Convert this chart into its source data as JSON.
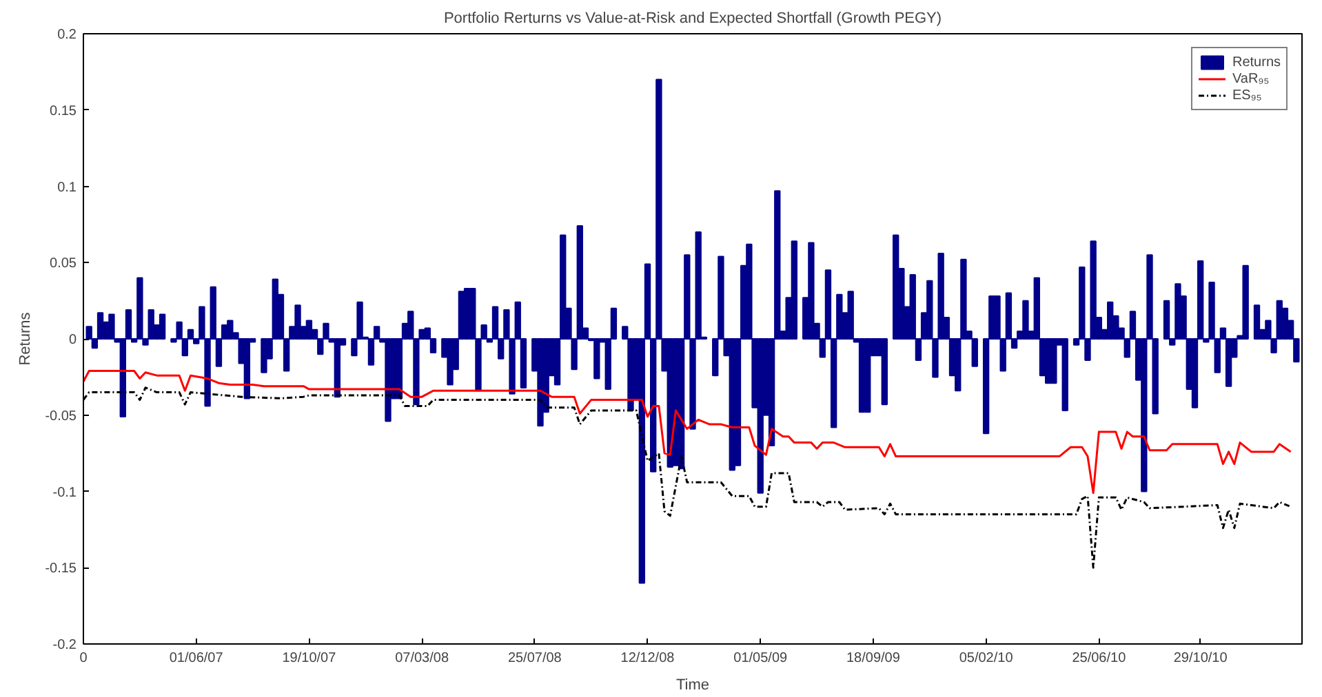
{
  "chart_data": {
    "type": "bar",
    "title": "Portfolio Rerturns vs Value-at-Risk and Expected Shortfall (Growth PEGY)",
    "xlabel": "Time",
    "ylabel": "Returns",
    "xlim": [
      "2007-01-12",
      "2011-03-04"
    ],
    "ylim": [
      -0.2,
      0.2
    ],
    "xticks": [
      {
        "value": "2007-01-12",
        "label": "0"
      },
      {
        "value": "2007-06-01",
        "label": "01/06/07"
      },
      {
        "value": "2007-10-19",
        "label": "19/10/07"
      },
      {
        "value": "2008-03-07",
        "label": "07/03/08"
      },
      {
        "value": "2008-07-25",
        "label": "25/07/08"
      },
      {
        "value": "2008-12-12",
        "label": "12/12/08"
      },
      {
        "value": "2009-05-01",
        "label": "01/05/09"
      },
      {
        "value": "2009-09-18",
        "label": "18/09/09"
      },
      {
        "value": "2010-02-05",
        "label": "05/02/10"
      },
      {
        "value": "2010-06-25",
        "label": "25/06/10"
      },
      {
        "value": "2010-10-29",
        "label": "29/10/10"
      }
    ],
    "yticks": [
      -0.2,
      -0.15,
      -0.1,
      -0.05,
      0,
      0.05,
      0.1,
      0.15,
      0.2
    ],
    "grid": false,
    "legend": "top right",
    "series": [
      {
        "name": "Returns",
        "color": "#00008b",
        "x": [
          "2007-01-19",
          "2007-01-26",
          "2007-02-02",
          "2007-02-09",
          "2007-02-16",
          "2007-02-23",
          "2007-03-02",
          "2007-03-09",
          "2007-03-16",
          "2007-03-23",
          "2007-03-30",
          "2007-04-06",
          "2007-04-13",
          "2007-04-20",
          "2007-05-04",
          "2007-05-11",
          "2007-05-18",
          "2007-05-25",
          "2007-06-01",
          "2007-06-08",
          "2007-06-15",
          "2007-06-22",
          "2007-06-29",
          "2007-07-06",
          "2007-07-13",
          "2007-07-20",
          "2007-07-27",
          "2007-08-03",
          "2007-08-10",
          "2007-08-24",
          "2007-08-31",
          "2007-09-07",
          "2007-09-14",
          "2007-09-21",
          "2007-09-28",
          "2007-10-05",
          "2007-10-12",
          "2007-10-19",
          "2007-10-26",
          "2007-11-02",
          "2007-11-09",
          "2007-11-16",
          "2007-11-23",
          "2007-11-30",
          "2007-12-14",
          "2007-12-21",
          "2007-12-28",
          "2008-01-04",
          "2008-01-11",
          "2008-01-18",
          "2008-01-25",
          "2008-02-01",
          "2008-02-08",
          "2008-02-15",
          "2008-02-22",
          "2008-02-29",
          "2008-03-07",
          "2008-03-14",
          "2008-03-21",
          "2008-04-04",
          "2008-04-11",
          "2008-04-18",
          "2008-04-25",
          "2008-05-02",
          "2008-05-09",
          "2008-05-16",
          "2008-05-23",
          "2008-05-30",
          "2008-06-06",
          "2008-06-13",
          "2008-06-20",
          "2008-06-27",
          "2008-07-04",
          "2008-07-11",
          "2008-07-25",
          "2008-08-01",
          "2008-08-08",
          "2008-08-15",
          "2008-08-22",
          "2008-08-29",
          "2008-09-05",
          "2008-09-12",
          "2008-09-19",
          "2008-09-26",
          "2008-10-03",
          "2008-10-10",
          "2008-10-17",
          "2008-10-24",
          "2008-10-31",
          "2008-11-14",
          "2008-11-21",
          "2008-11-28",
          "2008-12-05",
          "2008-12-12",
          "2008-12-19",
          "2008-12-26",
          "2009-01-02",
          "2009-01-09",
          "2009-01-16",
          "2009-01-23",
          "2009-01-30",
          "2009-02-06",
          "2009-02-13",
          "2009-02-20",
          "2009-03-06",
          "2009-03-13",
          "2009-03-20",
          "2009-03-27",
          "2009-04-03",
          "2009-04-10",
          "2009-04-17",
          "2009-04-24",
          "2009-05-01",
          "2009-05-08",
          "2009-05-15",
          "2009-05-22",
          "2009-05-29",
          "2009-06-05",
          "2009-06-12",
          "2009-06-26",
          "2009-07-03",
          "2009-07-10",
          "2009-07-17",
          "2009-07-24",
          "2009-07-31",
          "2009-08-07",
          "2009-08-14",
          "2009-08-21",
          "2009-08-28",
          "2009-09-04",
          "2009-09-11",
          "2009-09-18",
          "2009-09-25",
          "2009-10-02",
          "2009-10-16",
          "2009-10-23",
          "2009-10-30",
          "2009-11-06",
          "2009-11-13",
          "2009-11-20",
          "2009-11-27",
          "2009-12-04",
          "2009-12-11",
          "2009-12-18",
          "2009-12-25",
          "2010-01-01",
          "2010-01-08",
          "2010-01-15",
          "2010-01-22",
          "2010-02-05",
          "2010-02-12",
          "2010-02-19",
          "2010-02-26",
          "2010-03-05",
          "2010-03-12",
          "2010-03-19",
          "2010-03-26",
          "2010-04-02",
          "2010-04-09",
          "2010-04-16",
          "2010-04-23",
          "2010-04-30",
          "2010-05-07",
          "2010-05-14",
          "2010-05-28",
          "2010-06-04",
          "2010-06-11",
          "2010-06-18",
          "2010-06-25",
          "2010-07-02",
          "2010-07-09",
          "2010-07-16",
          "2010-07-23",
          "2010-07-30",
          "2010-08-06",
          "2010-08-13",
          "2010-08-20",
          "2010-08-27",
          "2010-09-03",
          "2010-09-17",
          "2010-09-24",
          "2010-10-01",
          "2010-10-08",
          "2010-10-15",
          "2010-10-22",
          "2010-10-29",
          "2010-11-05",
          "2010-11-12",
          "2010-11-19",
          "2010-11-26",
          "2010-12-03",
          "2010-12-10",
          "2010-12-17",
          "2010-12-24",
          "2011-01-07",
          "2011-01-14",
          "2011-01-21",
          "2011-01-28",
          "2011-02-04",
          "2011-02-11",
          "2011-02-18",
          "2011-02-25"
        ],
        "values": [
          0.008,
          -0.006,
          0.017,
          0.011,
          0.016,
          -0.002,
          -0.051,
          0.019,
          -0.002,
          0.04,
          -0.004,
          0.019,
          0.009,
          0.016,
          -0.002,
          0.011,
          -0.011,
          0.006,
          -0.003,
          0.021,
          -0.044,
          0.034,
          -0.018,
          0.009,
          0.012,
          0.004,
          -0.016,
          -0.039,
          -0.002,
          -0.022,
          -0.013,
          0.039,
          0.029,
          -0.021,
          0.008,
          0.022,
          0.008,
          0.012,
          0.006,
          -0.01,
          0.01,
          -0.002,
          -0.038,
          -0.004,
          -0.011,
          0.024,
          0.001,
          -0.017,
          0.008,
          -0.002,
          -0.054,
          -0.039,
          -0.039,
          0.01,
          0.018,
          -0.043,
          0.006,
          0.007,
          -0.009,
          -0.012,
          -0.03,
          -0.02,
          0.031,
          0.033,
          0.033,
          -0.034,
          0.009,
          -0.002,
          0.021,
          -0.013,
          0.019,
          -0.036,
          0.024,
          -0.032,
          -0.021,
          -0.057,
          -0.048,
          -0.024,
          -0.03,
          0.068,
          0.02,
          -0.02,
          0.074,
          0.007,
          -0.001,
          -0.026,
          -0.002,
          -0.033,
          0.02,
          0.008,
          -0.047,
          -0.04,
          -0.16,
          0.049,
          -0.087,
          0.17,
          -0.021,
          -0.084,
          -0.083,
          -0.085,
          0.055,
          -0.059,
          0.07,
          0.001,
          -0.024,
          0.054,
          -0.011,
          -0.086,
          -0.083,
          0.048,
          0.062,
          -0.045,
          -0.101,
          -0.05,
          -0.07,
          0.097,
          0.005,
          0.027,
          0.064,
          0.027,
          0.063,
          0.01,
          -0.012,
          0.045,
          -0.058,
          0.029,
          0.017,
          0.031,
          -0.002,
          -0.048,
          -0.048,
          -0.011,
          -0.011,
          -0.043,
          0.068,
          0.046,
          0.021,
          0.042,
          -0.014,
          0.017,
          0.038,
          -0.025,
          0.056,
          0.014,
          -0.024,
          -0.034,
          0.052,
          0.005,
          -0.018,
          -0.062,
          0.028,
          0.028,
          -0.021,
          0.03,
          -0.006,
          0.005,
          0.025,
          0.005,
          0.04,
          -0.024,
          -0.029,
          -0.029,
          -0.004,
          -0.047,
          -0.004,
          0.047,
          -0.014,
          0.064,
          0.014,
          0.006,
          0.024,
          0.015,
          0.007,
          -0.012,
          0.018,
          -0.027,
          -0.1,
          0.055,
          -0.049,
          0.025,
          -0.004,
          0.036,
          0.028,
          -0.033,
          -0.045,
          0.051,
          -0.002,
          0.037,
          -0.022,
          0.007,
          -0.031,
          -0.012,
          0.002,
          0.048,
          0.022,
          0.006,
          0.012,
          -0.009,
          0.025,
          0.02,
          0.012,
          -0.015
        ]
      },
      {
        "type": "line",
        "name": "VaR₉₅",
        "color": "#ff0000",
        "line_style": "solid",
        "x": [
          "2007-01-12",
          "2007-01-19",
          "2007-03-16",
          "2007-03-23",
          "2007-03-30",
          "2007-04-13",
          "2007-05-11",
          "2007-05-18",
          "2007-05-25",
          "2007-06-15",
          "2007-06-29",
          "2007-07-13",
          "2007-08-10",
          "2007-08-24",
          "2007-10-12",
          "2007-10-19",
          "2008-02-08",
          "2008-02-22",
          "2008-03-07",
          "2008-03-21",
          "2008-08-01",
          "2008-08-15",
          "2008-09-12",
          "2008-09-19",
          "2008-10-03",
          "2008-12-05",
          "2008-12-12",
          "2008-12-19",
          "2008-12-26",
          "2009-01-02",
          "2009-01-09",
          "2009-01-16",
          "2009-01-30",
          "2009-02-13",
          "2009-02-27",
          "2009-03-13",
          "2009-03-27",
          "2009-04-17",
          "2009-04-24",
          "2009-05-08",
          "2009-05-15",
          "2009-05-29",
          "2009-06-05",
          "2009-06-12",
          "2009-07-03",
          "2009-07-10",
          "2009-07-17",
          "2009-07-31",
          "2009-08-14",
          "2009-09-25",
          "2009-10-02",
          "2009-10-09",
          "2009-10-16",
          "2010-05-07",
          "2010-05-21",
          "2010-06-04",
          "2010-06-11",
          "2010-06-18",
          "2010-06-25",
          "2010-07-16",
          "2010-07-23",
          "2010-07-30",
          "2010-08-06",
          "2010-08-20",
          "2010-08-27",
          "2010-09-17",
          "2010-09-24",
          "2010-11-19",
          "2010-11-26",
          "2010-12-03",
          "2010-12-10",
          "2010-12-17",
          "2010-12-31",
          "2011-01-28",
          "2011-02-04",
          "2011-02-18"
        ],
        "values": [
          -0.028,
          -0.021,
          -0.021,
          -0.026,
          -0.022,
          -0.024,
          -0.024,
          -0.034,
          -0.024,
          -0.026,
          -0.029,
          -0.03,
          -0.03,
          -0.031,
          -0.031,
          -0.033,
          -0.033,
          -0.038,
          -0.038,
          -0.034,
          -0.034,
          -0.038,
          -0.038,
          -0.049,
          -0.04,
          -0.04,
          -0.051,
          -0.044,
          -0.044,
          -0.075,
          -0.076,
          -0.047,
          -0.059,
          -0.053,
          -0.056,
          -0.056,
          -0.058,
          -0.058,
          -0.07,
          -0.076,
          -0.059,
          -0.064,
          -0.064,
          -0.068,
          -0.068,
          -0.072,
          -0.068,
          -0.068,
          -0.071,
          -0.071,
          -0.077,
          -0.069,
          -0.077,
          -0.077,
          -0.071,
          -0.071,
          -0.077,
          -0.101,
          -0.061,
          -0.061,
          -0.072,
          -0.061,
          -0.064,
          -0.064,
          -0.073,
          -0.073,
          -0.069,
          -0.069,
          -0.082,
          -0.074,
          -0.082,
          -0.068,
          -0.074,
          -0.074,
          -0.069,
          -0.074
        ]
      },
      {
        "type": "line",
        "name": "ES₉₅",
        "color": "#000000",
        "line_style": "dashdot",
        "x": [
          "2007-01-12",
          "2007-01-19",
          "2007-03-16",
          "2007-03-23",
          "2007-03-30",
          "2007-04-13",
          "2007-05-11",
          "2007-05-18",
          "2007-05-25",
          "2007-07-27",
          "2007-09-14",
          "2007-10-12",
          "2007-10-19",
          "2008-02-08",
          "2008-02-15",
          "2008-03-14",
          "2008-03-21",
          "2008-08-01",
          "2008-08-08",
          "2008-09-12",
          "2008-09-19",
          "2008-10-03",
          "2008-11-28",
          "2008-12-12",
          "2008-12-26",
          "2009-01-02",
          "2009-01-09",
          "2009-01-23",
          "2009-01-30",
          "2009-03-13",
          "2009-03-27",
          "2009-04-17",
          "2009-04-24",
          "2009-05-08",
          "2009-05-15",
          "2009-06-05",
          "2009-06-12",
          "2009-07-10",
          "2009-07-17",
          "2009-07-24",
          "2009-08-07",
          "2009-08-14",
          "2009-09-25",
          "2009-10-02",
          "2009-10-09",
          "2009-10-16",
          "2010-05-28",
          "2010-06-04",
          "2010-06-11",
          "2010-06-18",
          "2010-06-25",
          "2010-07-16",
          "2010-07-23",
          "2010-07-30",
          "2010-08-20",
          "2010-08-27",
          "2010-11-19",
          "2010-11-26",
          "2010-12-03",
          "2010-12-10",
          "2010-12-17",
          "2011-01-28",
          "2011-02-04",
          "2011-02-18"
        ],
        "values": [
          -0.04,
          -0.035,
          -0.035,
          -0.04,
          -0.032,
          -0.035,
          -0.035,
          -0.043,
          -0.035,
          -0.038,
          -0.039,
          -0.038,
          -0.037,
          -0.037,
          -0.044,
          -0.044,
          -0.04,
          -0.04,
          -0.045,
          -0.045,
          -0.056,
          -0.047,
          -0.047,
          -0.08,
          -0.075,
          -0.113,
          -0.116,
          -0.077,
          -0.094,
          -0.094,
          -0.103,
          -0.103,
          -0.11,
          -0.11,
          -0.088,
          -0.088,
          -0.107,
          -0.107,
          -0.11,
          -0.107,
          -0.107,
          -0.112,
          -0.111,
          -0.115,
          -0.108,
          -0.115,
          -0.115,
          -0.105,
          -0.103,
          -0.15,
          -0.104,
          -0.104,
          -0.112,
          -0.104,
          -0.107,
          -0.111,
          -0.109,
          -0.124,
          -0.112,
          -0.124,
          -0.108,
          -0.111,
          -0.107,
          -0.11
        ]
      }
    ]
  }
}
